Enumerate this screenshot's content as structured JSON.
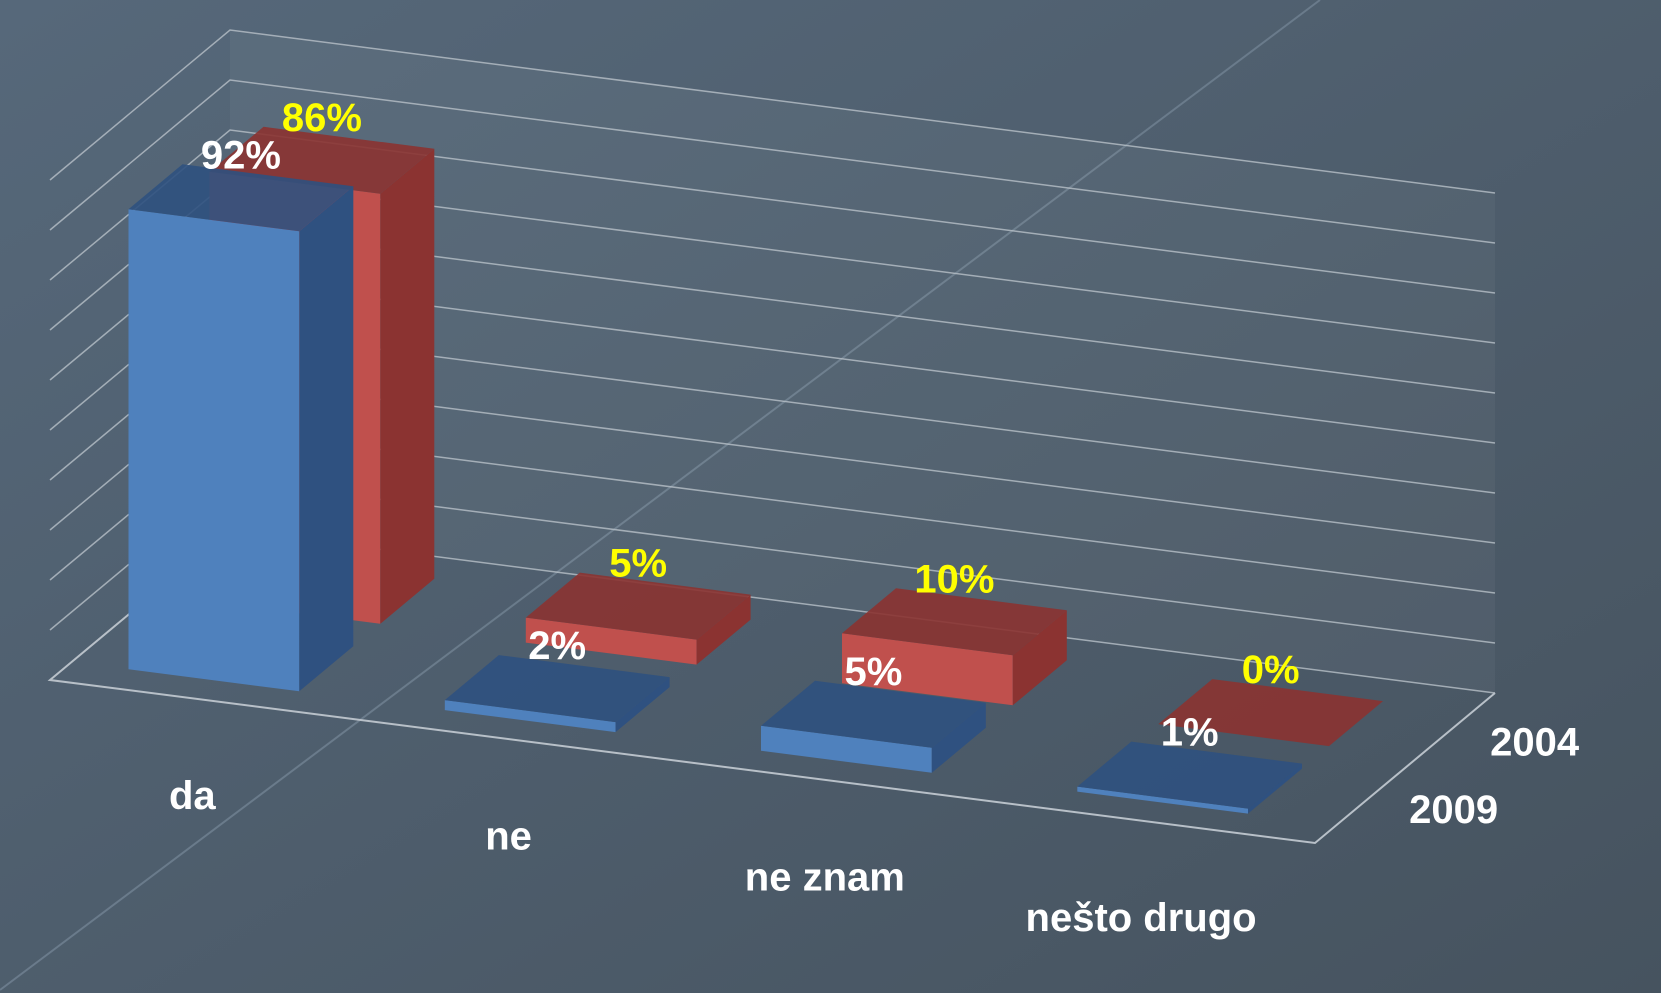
{
  "chart_data": {
    "type": "bar3d",
    "categories": [
      "da",
      "ne",
      "ne znam",
      "nešto drugo"
    ],
    "series": [
      {
        "name": "2009",
        "color": "#4f81bd",
        "side_color": "#2f5180",
        "label_color": "#ffffff",
        "values": [
          92,
          2,
          5,
          1
        ],
        "value_labels": [
          "92%",
          "2%",
          "5%",
          "1%"
        ]
      },
      {
        "name": "2004",
        "color": "#c0504d",
        "side_color": "#8b3331",
        "label_color": "#ffff00",
        "values": [
          86,
          5,
          10,
          0
        ],
        "value_labels": [
          "86%",
          "5%",
          "10%",
          "0%"
        ]
      }
    ],
    "ylim": [
      0,
      100
    ],
    "yticks": [
      0,
      10,
      20,
      30,
      40,
      50,
      60,
      70,
      80,
      90,
      100
    ],
    "grid": true
  }
}
